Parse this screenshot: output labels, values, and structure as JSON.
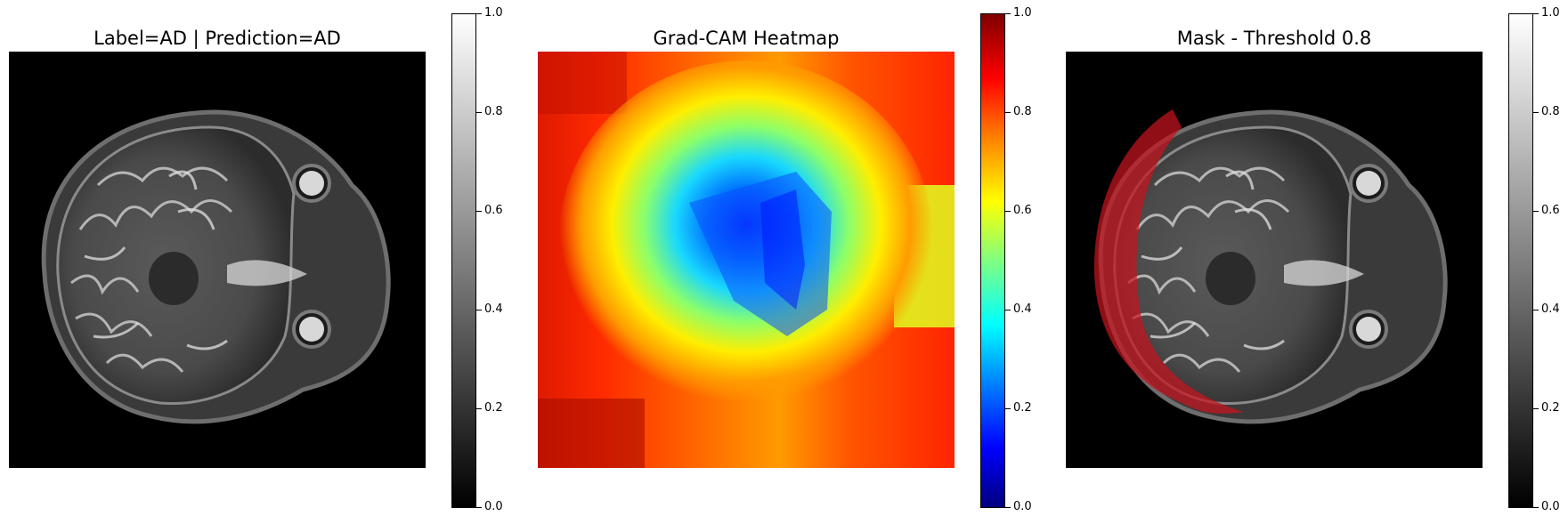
{
  "panels": [
    {
      "title": "Label=AD | Prediction=AD",
      "image": "grayscale axial brain MRI slice",
      "colorbar": {
        "colormap": "gray",
        "range": [
          0.0,
          1.0
        ],
        "tick_labels": [
          "0.0",
          "0.2",
          "0.4",
          "0.6",
          "0.8",
          "1.0"
        ]
      }
    },
    {
      "title": "Grad-CAM Heatmap",
      "image": "Grad-CAM heatmap, jet colormap",
      "colorbar": {
        "colormap": "jet",
        "range": [
          0.0,
          1.0
        ],
        "tick_labels": [
          "0.0",
          "0.2",
          "0.4",
          "0.6",
          "0.8",
          "1.0"
        ]
      }
    },
    {
      "title": "Mask - Threshold 0.8",
      "image": "brain MRI slice with red mask overlay",
      "colorbar": {
        "colormap": "gray",
        "range": [
          0.0,
          1.0
        ],
        "tick_labels": [
          "0.0",
          "0.2",
          "0.4",
          "0.6",
          "0.8",
          "1.0"
        ]
      }
    }
  ],
  "colors": {
    "mask_overlay": "#c8141e"
  }
}
